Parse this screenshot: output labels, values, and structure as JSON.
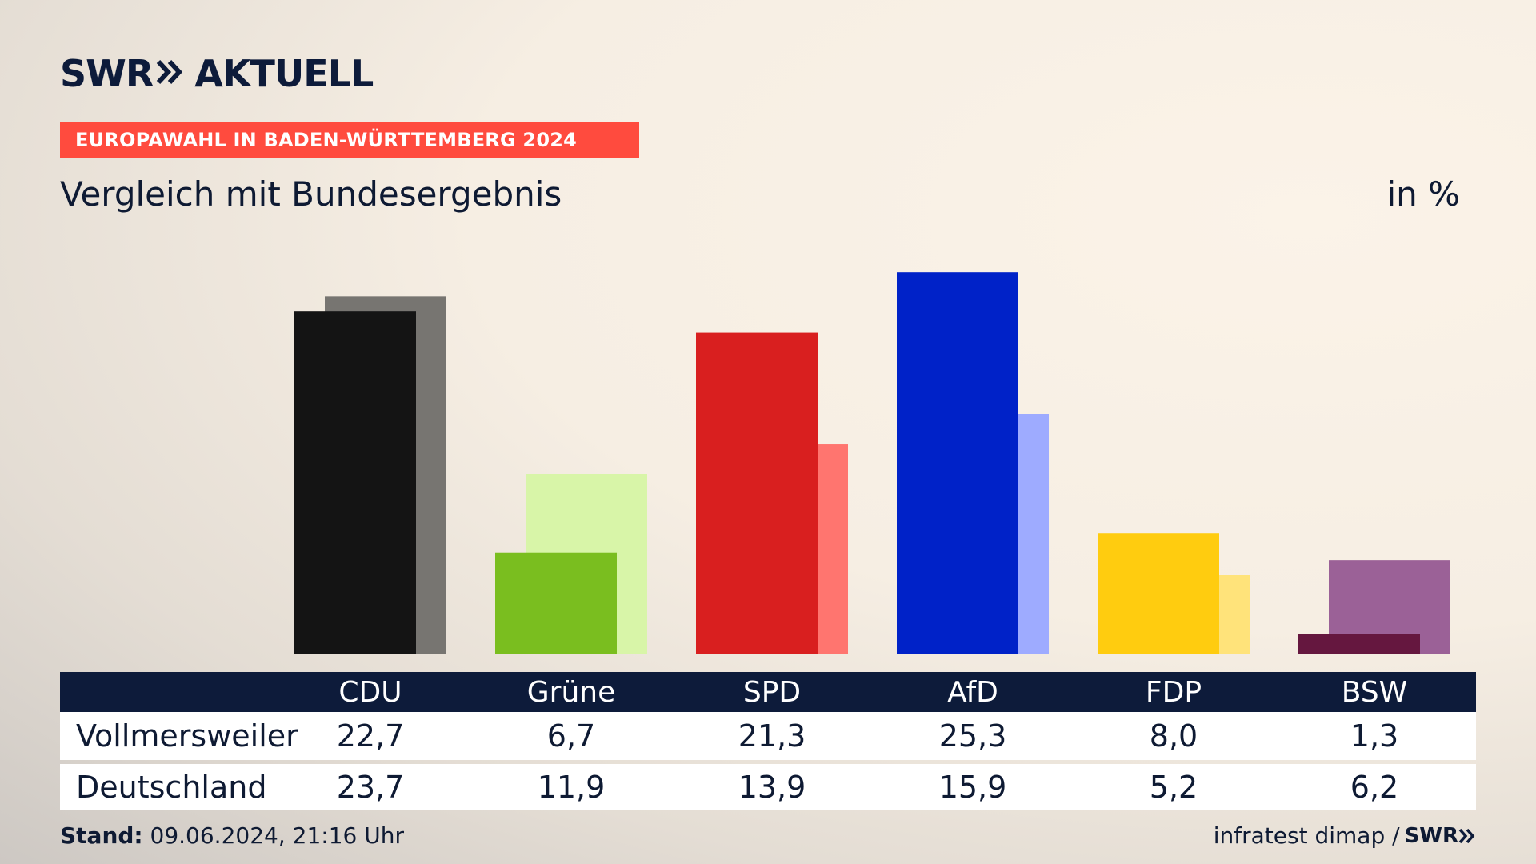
{
  "brand": {
    "logo_left": "SWR",
    "logo_right": "AKTUELL",
    "footer_logo": "SWR"
  },
  "banner": "EUROPAWAHL IN BADEN-WÜRTTEMBERG 2024",
  "subtitle": "Vergleich mit Bundesergebnis",
  "unit": "in %",
  "table": {
    "rows": [
      {
        "label": "Vollmersweiler",
        "values": [
          "22,7",
          "6,7",
          "21,3",
          "25,3",
          "8,0",
          "1,3"
        ]
      },
      {
        "label": "Deutschland",
        "values": [
          "23,7",
          "11,9",
          "13,9",
          "15,9",
          "5,2",
          "6,2"
        ]
      }
    ]
  },
  "footer": {
    "stand_label": "Stand:",
    "stand_value": " 09.06.2024, 21:16 Uhr",
    "source": "infratest dimap /"
  },
  "chart_data": {
    "type": "bar",
    "categories": [
      "CDU",
      "Grüne",
      "SPD",
      "AfD",
      "FDP",
      "BSW"
    ],
    "series": [
      {
        "name": "Vollmersweiler",
        "values": [
          22.7,
          6.7,
          21.3,
          25.3,
          8.0,
          1.3
        ],
        "colors": [
          "#141414",
          "#7abe1f",
          "#d91f1f",
          "#0022c8",
          "#ffcc0f",
          "#65173f"
        ]
      },
      {
        "name": "Deutschland",
        "values": [
          23.7,
          11.9,
          13.9,
          15.9,
          5.2,
          6.2
        ],
        "colors": [
          "#777571",
          "#d8f5a8",
          "#ff756f",
          "#9eabff",
          "#ffe37a",
          "#9b6197"
        ]
      }
    ],
    "ylim": [
      0,
      26
    ],
    "grid": false,
    "legend": "none"
  }
}
